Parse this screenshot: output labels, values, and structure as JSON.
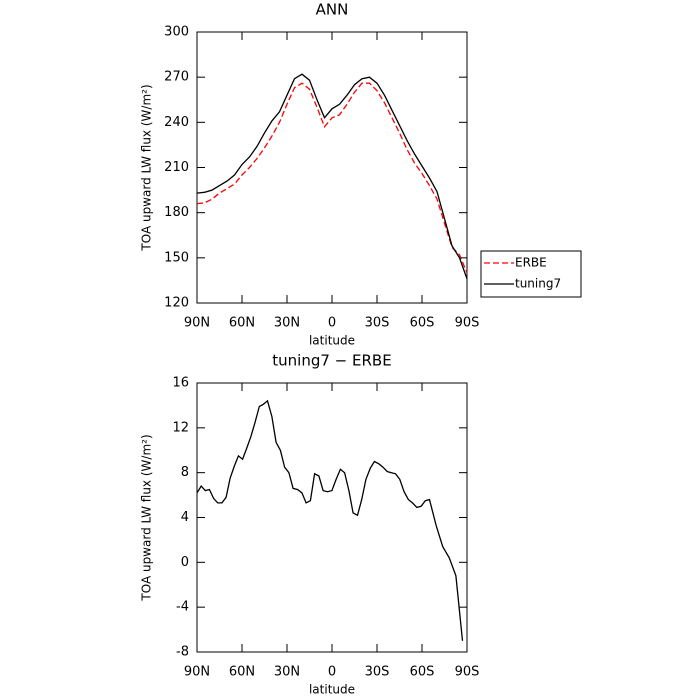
{
  "chart_data": [
    {
      "type": "line",
      "title": "ANN",
      "xlabel": "latitude",
      "ylabel": "TOA upward LW flux (W/m²)",
      "x": [
        90,
        85,
        80,
        75,
        70,
        65,
        60,
        55,
        50,
        45,
        40,
        35,
        30,
        25,
        20,
        15,
        10,
        5,
        0,
        -5,
        -10,
        -15,
        -20,
        -25,
        -30,
        -35,
        -40,
        -45,
        -50,
        -55,
        -60,
        -65,
        -70,
        -75,
        -80,
        -85,
        -90
      ],
      "xlim": [
        90,
        -90
      ],
      "xticks": [
        {
          "value": 90,
          "label": "90N"
        },
        {
          "value": 60,
          "label": "60N"
        },
        {
          "value": 30,
          "label": "30N"
        },
        0,
        {
          "value": -30,
          "label": "30S"
        },
        {
          "value": -60,
          "label": "60S"
        },
        {
          "value": -90,
          "label": "90S"
        }
      ],
      "ylim": [
        120,
        300
      ],
      "yticks": [
        120,
        150,
        180,
        210,
        240,
        270,
        300
      ],
      "legend": "right",
      "series": [
        {
          "name": "ERBE",
          "color": "#ff0000",
          "linestyle": "dashed",
          "values": [
            186,
            186.5,
            189,
            193,
            196,
            199,
            205,
            210,
            216,
            223,
            231,
            240,
            252,
            263,
            266,
            262,
            250,
            237,
            243,
            245,
            252,
            260,
            266,
            266,
            261,
            253,
            243,
            233,
            222,
            213,
            206,
            198,
            189,
            173,
            157,
            152,
            140
          ]
        },
        {
          "name": "tuning7",
          "color": "#000000",
          "linestyle": "solid",
          "values": [
            193,
            193.5,
            195,
            198,
            201,
            205,
            212,
            217,
            224,
            233,
            241,
            247,
            258,
            269,
            272,
            268,
            255,
            243,
            249,
            252,
            258,
            265,
            269,
            270,
            266,
            258,
            248,
            238,
            228,
            219,
            211,
            203,
            194,
            176,
            158,
            150,
            136
          ]
        }
      ]
    },
    {
      "type": "line",
      "title": "tuning7 − ERBE",
      "xlabel": "latitude",
      "ylabel": "TOA upward LW flux (W/m²)",
      "x": [
        90,
        87.2,
        84.5,
        81.7,
        78.9,
        76.2,
        73.4,
        70.6,
        67.9,
        65.1,
        62.4,
        59.6,
        56.8,
        54.1,
        51.3,
        48.5,
        45.8,
        43,
        40.1,
        37.3,
        34.4,
        31.6,
        28.7,
        25.9,
        23,
        20.1,
        17.3,
        14.4,
        11.6,
        8.7,
        5.9,
        3,
        0.1,
        -2.7,
        -5.6,
        -8.4,
        -11.3,
        -14.1,
        -17,
        -19.8,
        -22.6,
        -25.5,
        -28.3,
        -31.1,
        -33.9,
        -36.8,
        -39.6,
        -42.4,
        -45.2,
        -48.1,
        -50.9,
        -53.7,
        -56.5,
        -59.4,
        -62.2,
        -65,
        -69.4,
        -73.8,
        -78.2,
        -82.6,
        -87
      ],
      "xlim": [
        90,
        -90
      ],
      "xticks": [
        {
          "value": 90,
          "label": "90N"
        },
        {
          "value": 60,
          "label": "60N"
        },
        {
          "value": 30,
          "label": "30N"
        },
        0,
        {
          "value": -30,
          "label": "30S"
        },
        {
          "value": -60,
          "label": "60S"
        },
        {
          "value": -90,
          "label": "90S"
        }
      ],
      "ylim": [
        -8,
        16
      ],
      "yticks": [
        -8,
        -4,
        0,
        4,
        8,
        12,
        16
      ],
      "color": "#000000",
      "values": [
        6.2,
        6.8,
        6.4,
        6.5,
        5.7,
        5.3,
        5.3,
        5.8,
        7.5,
        8.6,
        9.5,
        9.2,
        10.2,
        11.2,
        12.5,
        13.9,
        14.1,
        14.4,
        13.0,
        10.7,
        10.0,
        8.5,
        8.0,
        6.6,
        6.5,
        6.2,
        5.3,
        5.5,
        7.9,
        7.7,
        6.4,
        6.3,
        6.4,
        7.4,
        8.3,
        8.0,
        6.4,
        4.4,
        4.2,
        5.6,
        7.4,
        8.4,
        9.0,
        8.8,
        8.5,
        8.1,
        8.0,
        7.9,
        7.4,
        6.3,
        5.6,
        5.3,
        4.9,
        5.0,
        5.5,
        5.6,
        3.3,
        1.4,
        0.4,
        -1.2,
        -7.0
      ]
    }
  ]
}
